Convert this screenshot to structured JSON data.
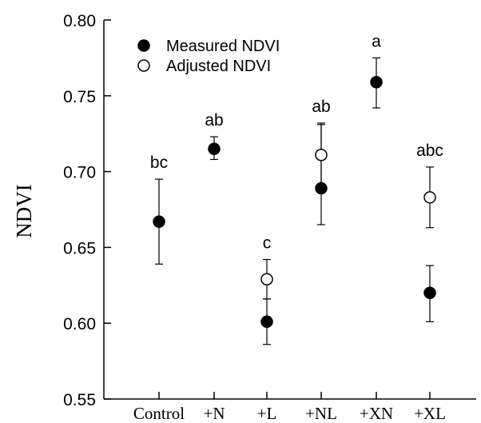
{
  "chart_data": {
    "type": "scatter",
    "ylabel": "NDVI",
    "ylim": [
      0.55,
      0.8
    ],
    "yticks": [
      "0.55",
      "0.60",
      "0.65",
      "0.70",
      "0.75",
      "0.80"
    ],
    "categories": [
      "Control",
      "+N",
      "+L",
      "+NL",
      "+XN",
      "+XL"
    ],
    "legend_position": "top-left",
    "series": [
      {
        "name": "Measured NDVI",
        "marker": "filled-circle",
        "values": [
          0.667,
          0.715,
          0.601,
          0.689,
          0.759,
          0.62
        ],
        "error_bars": [
          [
            0.639,
            0.695
          ],
          [
            0.708,
            0.723
          ],
          [
            0.586,
            0.616
          ],
          [
            0.665,
            0.731
          ],
          [
            0.742,
            0.775
          ],
          [
            0.601,
            0.638
          ]
        ]
      },
      {
        "name": "Adjusted NDVI",
        "marker": "open-circle",
        "values": [
          null,
          null,
          0.629,
          0.711,
          null,
          0.683
        ],
        "error_bars": [
          null,
          null,
          [
            0.616,
            0.642
          ],
          [
            0.69,
            0.732
          ],
          null,
          [
            0.663,
            0.703
          ]
        ]
      }
    ],
    "annotations": [
      "bc",
      "ab",
      "c",
      "ab",
      "a",
      "abc"
    ],
    "colors": {
      "marker": "#000000",
      "open_fill": "#ffffff",
      "axis": "#000000"
    }
  }
}
